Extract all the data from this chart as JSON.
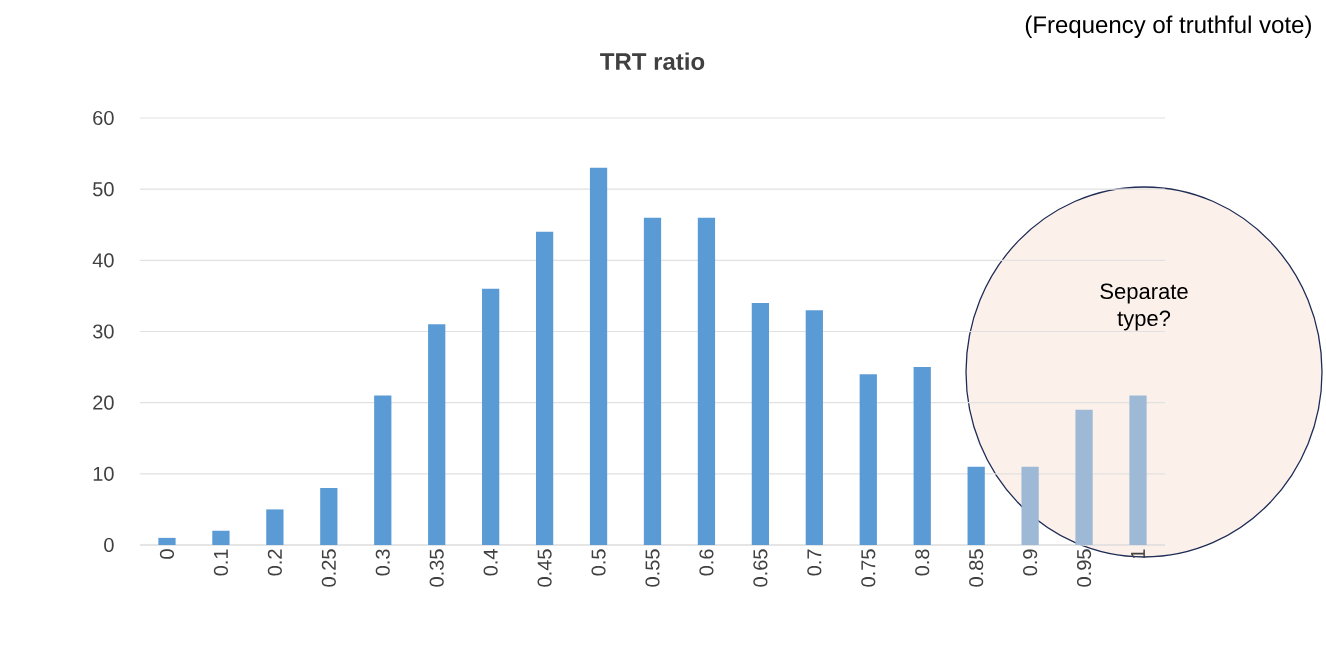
{
  "chart_data": {
    "type": "bar",
    "title": "TRT ratio",
    "annotations": [
      "(Frequency of truthful vote)",
      "Separate type?"
    ],
    "categories": [
      "0",
      "0.1",
      "0.2",
      "0.25",
      "0.3",
      "0.35",
      "0.4",
      "0.45",
      "0.5",
      "0.55",
      "0.6",
      "0.65",
      "0.7",
      "0.75",
      "0.8",
      "0.85",
      "0.9",
      "0.95",
      "1"
    ],
    "values": [
      1,
      2,
      5,
      8,
      21,
      31,
      36,
      44,
      53,
      46,
      46,
      34,
      33,
      24,
      25,
      11,
      11,
      19,
      21
    ],
    "colors": [
      "#5b9bd5",
      "#5b9bd5",
      "#5b9bd5",
      "#5b9bd5",
      "#5b9bd5",
      "#5b9bd5",
      "#5b9bd5",
      "#5b9bd5",
      "#5b9bd5",
      "#5b9bd5",
      "#5b9bd5",
      "#5b9bd5",
      "#5b9bd5",
      "#5b9bd5",
      "#5b9bd5",
      "#5b9bd5",
      "#9db9d6",
      "#9db9d6",
      "#9db9d6"
    ],
    "ylim": [
      0,
      60
    ],
    "yticks": [
      0,
      10,
      20,
      30,
      40,
      50,
      60
    ],
    "grid": "y"
  }
}
